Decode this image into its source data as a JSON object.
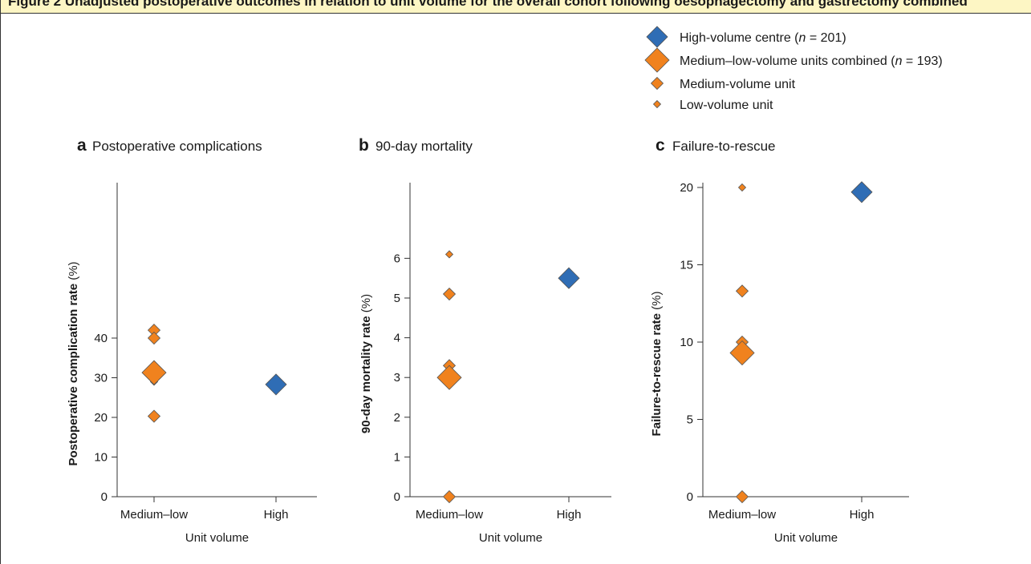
{
  "banner": {
    "text": "Figure 2 Unadjusted postoperative outcomes in relation to unit volume for the overall cohort following oesophagectomy and gastrectomy combined"
  },
  "legend": {
    "items": [
      {
        "label": "High-volume centre (",
        "n": "n",
        "rest": " = 201)",
        "symbol": "high"
      },
      {
        "label": "Medium–low-volume units combined (",
        "n": "n",
        "rest": " = 193)",
        "symbol": "combined"
      },
      {
        "label": "Medium-volume unit",
        "symbol": "medium"
      },
      {
        "label": "Low-volume unit",
        "symbol": "low"
      }
    ]
  },
  "colors": {
    "high_fill": "#2f6db5",
    "orange_fill": "#f0821e",
    "marker_stroke": "#555555",
    "axis": "#333333",
    "banner_bg": "#fdf6c4"
  },
  "chart_data": [
    {
      "panel_letter": "a",
      "title": "Postoperative complications",
      "type": "scatter",
      "xlabel": "Unit volume",
      "ylabel": "Postoperative complication rate (%)",
      "categories": [
        "Medium–low",
        "High"
      ],
      "ylim": [
        0,
        45
      ],
      "yticks": [
        0,
        10,
        20,
        30,
        40
      ],
      "points": [
        {
          "x": "Medium–low",
          "y": 42.0,
          "kind": "medium"
        },
        {
          "x": "Medium–low",
          "y": 40.0,
          "kind": "medium"
        },
        {
          "x": "Medium–low",
          "y": 29.0,
          "kind": "low"
        },
        {
          "x": "Medium–low",
          "y": 20.3,
          "kind": "medium"
        },
        {
          "x": "Medium–low",
          "y": 31.3,
          "kind": "combined"
        },
        {
          "x": "High",
          "y": 28.3,
          "kind": "high"
        }
      ]
    },
    {
      "panel_letter": "b",
      "title": "90-day mortality",
      "type": "scatter",
      "xlabel": "Unit volume",
      "ylabel": "90-day mortality rate (%)",
      "categories": [
        "Medium–low",
        "High"
      ],
      "ylim": [
        0,
        7
      ],
      "yticks": [
        0,
        1,
        2,
        3,
        4,
        5,
        6
      ],
      "points": [
        {
          "x": "Medium–low",
          "y": 6.1,
          "kind": "low"
        },
        {
          "x": "Medium–low",
          "y": 5.1,
          "kind": "medium"
        },
        {
          "x": "Medium–low",
          "y": 3.3,
          "kind": "medium"
        },
        {
          "x": "Medium–low",
          "y": 0.0,
          "kind": "medium"
        },
        {
          "x": "Medium–low",
          "y": 3.0,
          "kind": "combined"
        },
        {
          "x": "High",
          "y": 5.5,
          "kind": "high"
        }
      ]
    },
    {
      "panel_letter": "c",
      "title": "Failure-to-rescue",
      "type": "scatter",
      "xlabel": "Unit volume",
      "ylabel": "Failure-to-rescue rate (%)",
      "categories": [
        "Medium–low",
        "High"
      ],
      "ylim": [
        0,
        21
      ],
      "yticks": [
        0,
        5,
        10,
        15,
        20
      ],
      "points": [
        {
          "x": "Medium–low",
          "y": 20.0,
          "kind": "low"
        },
        {
          "x": "Medium–low",
          "y": 13.3,
          "kind": "medium"
        },
        {
          "x": "Medium–low",
          "y": 10.0,
          "kind": "medium"
        },
        {
          "x": "Medium–low",
          "y": 0.0,
          "kind": "medium"
        },
        {
          "x": "Medium–low",
          "y": 9.3,
          "kind": "combined"
        },
        {
          "x": "High",
          "y": 19.7,
          "kind": "high"
        }
      ]
    }
  ]
}
